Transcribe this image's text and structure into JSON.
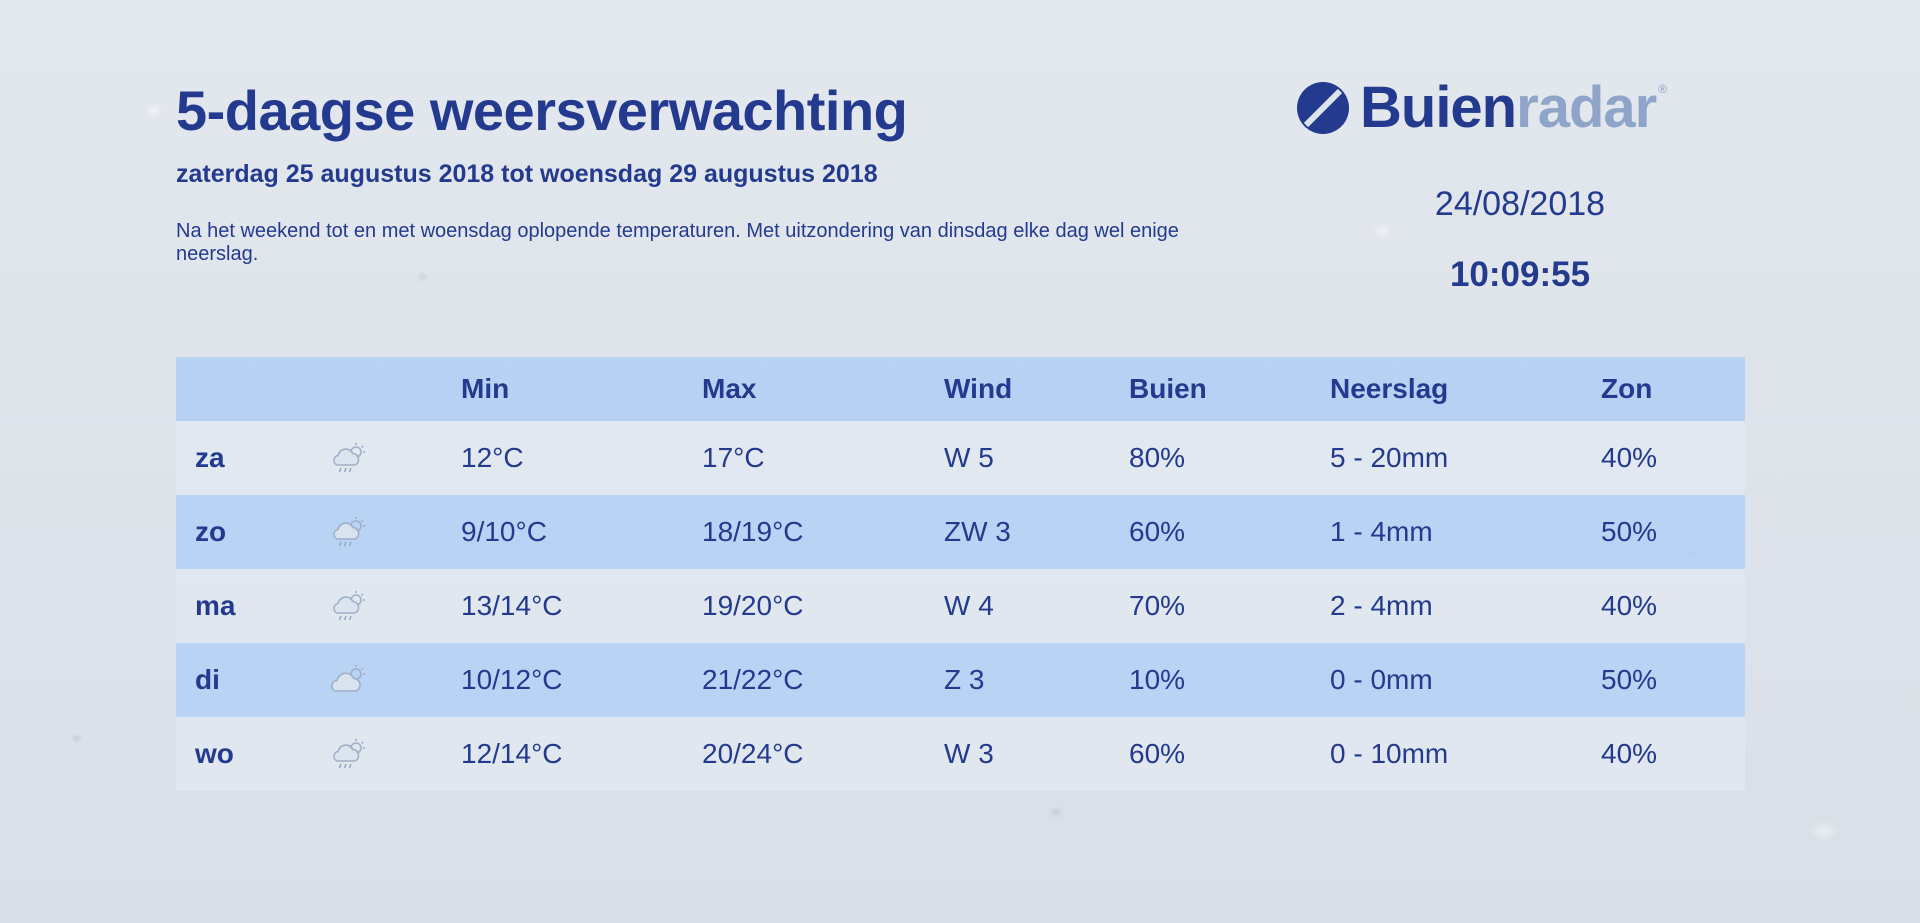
{
  "header": {
    "title": "5-daagse weersverwachting",
    "subtitle": "zaterdag 25 augustus 2018 tot woensdag 29 augustus 2018",
    "description": "Na het weekend tot en met woensdag oplopende temperaturen. Met uitzondering van dinsdag elke dag wel enige neerslag."
  },
  "brand": {
    "name_part1": "Buien",
    "name_part2": "radar",
    "registered": "®",
    "logo_icon": "buienradar-logo-icon",
    "color_primary": "#233a8e",
    "color_secondary": "#8ea4c8"
  },
  "clock": {
    "date": "24/08/2018",
    "time": "10:09:55"
  },
  "table": {
    "columns": [
      "",
      "",
      "Min",
      "Max",
      "Wind",
      "Buien",
      "Neerslag",
      "Zon"
    ],
    "rows": [
      {
        "day": "za",
        "icon": "cloud-rain-sun-icon",
        "min": "12°C",
        "max": "17°C",
        "wind": "W 5",
        "buien": "80%",
        "neerslag": "5 - 20mm",
        "zon": "40%"
      },
      {
        "day": "zo",
        "icon": "cloud-rain-sun-icon",
        "min": "9/10°C",
        "max": "18/19°C",
        "wind": "ZW 3",
        "buien": "60%",
        "neerslag": "1 - 4mm",
        "zon": "50%"
      },
      {
        "day": "ma",
        "icon": "cloud-rain-sun-icon",
        "min": "13/14°C",
        "max": "19/20°C",
        "wind": "W 4",
        "buien": "70%",
        "neerslag": "2 - 4mm",
        "zon": "40%"
      },
      {
        "day": "di",
        "icon": "cloud-sun-icon",
        "min": "10/12°C",
        "max": "21/22°C",
        "wind": "Z 3",
        "buien": "10%",
        "neerslag": "0 - 0mm",
        "zon": "50%"
      },
      {
        "day": "wo",
        "icon": "cloud-rain-sun-icon",
        "min": "12/14°C",
        "max": "20/24°C",
        "wind": "W 3",
        "buien": "60%",
        "neerslag": "0 - 10mm",
        "zon": "40%"
      }
    ]
  }
}
